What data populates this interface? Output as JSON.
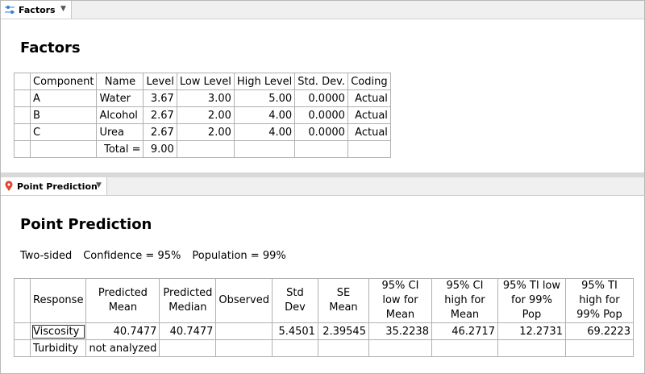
{
  "factors": {
    "tab": "Factors",
    "title": "Factors",
    "table": {
      "header": [
        "Component",
        "Name",
        "Level",
        "Low Level",
        "High Level",
        "Std. Dev.",
        "Coding"
      ],
      "rows": [
        [
          "A",
          "Water",
          "3.67",
          "3.00",
          "5.00",
          "0.0000",
          "Actual"
        ],
        [
          "B",
          "Alcohol",
          "2.67",
          "2.00",
          "4.00",
          "0.0000",
          "Actual"
        ],
        [
          "C",
          "Urea",
          "2.67",
          "2.00",
          "4.00",
          "0.0000",
          "Actual"
        ],
        [
          null,
          "Total =",
          "9.00",
          null,
          null,
          null,
          null
        ]
      ]
    }
  },
  "point_prediction": {
    "tab": "Point Prediction",
    "title": "Point Prediction",
    "settings": [
      "Two-sided",
      "Confidence = 95%",
      "Population = 99%"
    ],
    "table": {
      "header": [
        "Response",
        "Predicted Mean",
        "Predicted Median",
        "Observed",
        "Std Dev",
        "SE Mean",
        "95% CI low for Mean",
        "95% CI high for Mean",
        "95% TI low for 99% Pop",
        "95% TI high for 99% Pop"
      ],
      "rows": [
        [
          "Viscosity",
          "40.7477",
          "40.7477",
          null,
          "5.4501",
          "2.39545",
          "35.2238",
          "46.2717",
          "12.2731",
          "69.2223"
        ],
        [
          "Turbidity",
          "not analyzed",
          null,
          null,
          null,
          null,
          null,
          null,
          null,
          null
        ]
      ]
    }
  }
}
